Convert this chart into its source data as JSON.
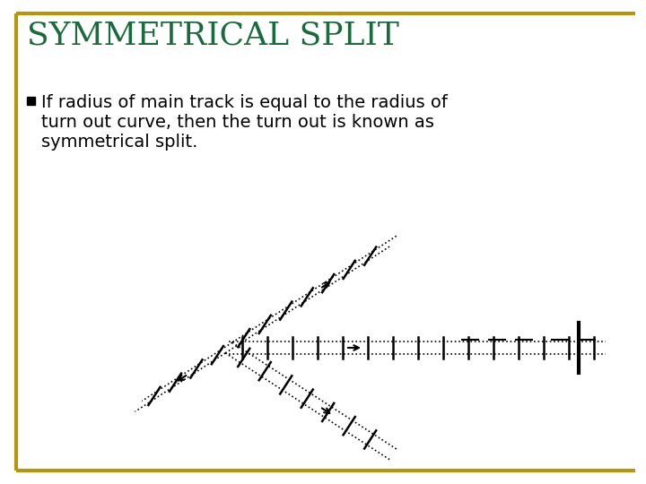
{
  "title": "SYMMETRICAL SPLIT",
  "title_color": "#1a6b3c",
  "border_color": "#b8960c",
  "bg_color": "#ffffff",
  "bullet_text_line1": "If radius of main track is equal to the radius of",
  "bullet_text_line2": "turn out curve, then the turn out is known as",
  "bullet_text_line3": "symmetrical split.",
  "bullet_color": "#000000",
  "figsize": [
    7.2,
    5.4
  ],
  "dpi": 100
}
